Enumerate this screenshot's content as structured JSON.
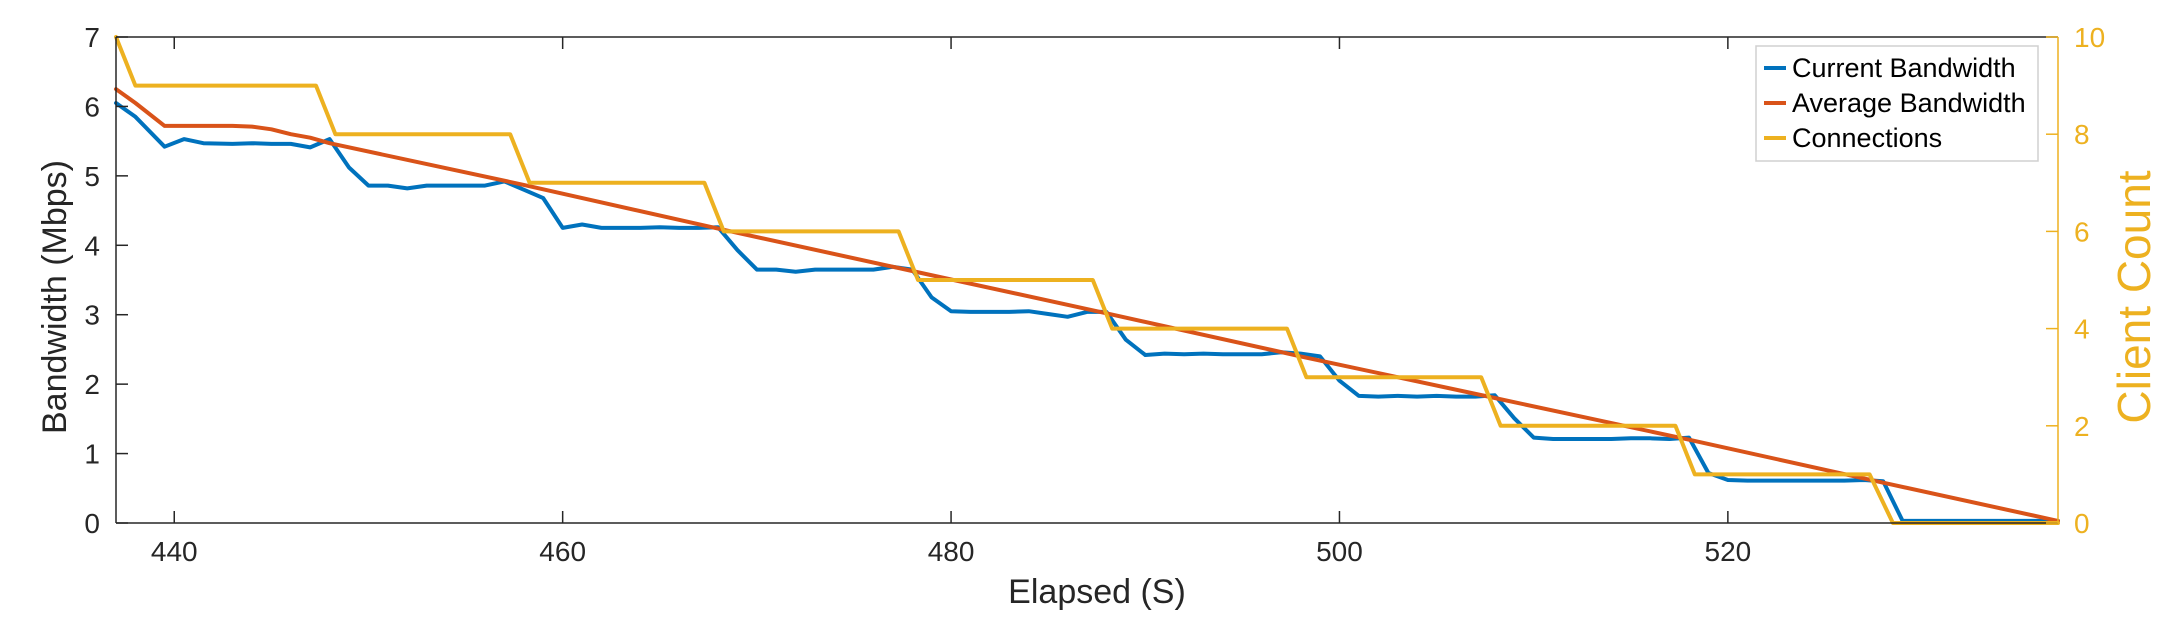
{
  "chart_data": {
    "type": "line",
    "title": "",
    "xlabel": "Elapsed (S)",
    "ylabel_left": "Bandwidth (Mbps)",
    "ylabel_right": "Client Count",
    "xlim": [
      437,
      537
    ],
    "ylim_left": [
      0,
      7
    ],
    "ylim_right": [
      0,
      10
    ],
    "x_ticks": [
      440,
      460,
      480,
      500,
      520
    ],
    "y_ticks_left": [
      0,
      1,
      2,
      3,
      4,
      5,
      6,
      7
    ],
    "y_ticks_right": [
      0,
      2,
      4,
      6,
      8,
      10
    ],
    "grid": false,
    "legend_position": "top-right",
    "right_axis_color": "#EDB120",
    "series": [
      {
        "name": "Current Bandwidth",
        "axis": "left",
        "color": "#0072BD",
        "x": [
          437,
          438,
          439.5,
          440.5,
          441.5,
          443,
          444,
          445,
          446,
          447,
          448,
          449,
          450,
          451,
          452,
          453,
          454,
          455,
          456,
          457,
          458,
          459,
          460,
          461,
          462,
          463,
          464,
          465,
          466,
          467,
          468,
          469,
          470,
          471,
          472,
          473,
          474,
          475,
          476,
          477,
          478,
          479,
          480,
          481,
          482,
          483,
          484,
          485,
          486,
          487,
          488,
          489,
          490,
          491,
          492,
          493,
          494,
          495,
          496,
          497,
          498,
          499,
          500,
          501,
          502,
          503,
          504,
          505,
          506,
          507,
          508,
          509,
          510,
          511,
          512,
          513,
          514,
          515,
          516,
          517,
          518,
          519,
          520,
          521,
          522,
          523,
          524,
          525,
          526,
          527,
          528,
          529,
          537
        ],
        "values": [
          6.05,
          5.85,
          5.42,
          5.53,
          5.47,
          5.46,
          5.47,
          5.46,
          5.46,
          5.41,
          5.53,
          5.12,
          4.86,
          4.86,
          4.82,
          4.86,
          4.86,
          4.86,
          4.86,
          4.92,
          4.8,
          4.68,
          4.25,
          4.3,
          4.25,
          4.25,
          4.25,
          4.26,
          4.25,
          4.25,
          4.26,
          3.93,
          3.65,
          3.65,
          3.62,
          3.65,
          3.65,
          3.65,
          3.65,
          3.69,
          3.65,
          3.25,
          3.05,
          3.04,
          3.04,
          3.04,
          3.05,
          3.01,
          2.97,
          3.04,
          3.04,
          2.64,
          2.42,
          2.44,
          2.43,
          2.44,
          2.43,
          2.43,
          2.43,
          2.46,
          2.44,
          2.4,
          2.05,
          1.83,
          1.82,
          1.83,
          1.82,
          1.83,
          1.82,
          1.82,
          1.84,
          1.51,
          1.23,
          1.21,
          1.21,
          1.21,
          1.21,
          1.22,
          1.22,
          1.21,
          1.23,
          0.72,
          0.62,
          0.61,
          0.61,
          0.61,
          0.61,
          0.61,
          0.61,
          0.62,
          0.6,
          0.03,
          0.03
        ]
      },
      {
        "name": "Average Bandwidth",
        "axis": "left",
        "color": "#D95319",
        "x": [
          437,
          438,
          439.5,
          440,
          442,
          443,
          444,
          445,
          446,
          447,
          448,
          458,
          468,
          478,
          488,
          498,
          508,
          518,
          528,
          537
        ],
        "values": [
          6.25,
          6.05,
          5.72,
          5.72,
          5.72,
          5.72,
          5.71,
          5.67,
          5.6,
          5.55,
          5.47,
          4.87,
          4.24,
          3.63,
          3.02,
          2.4,
          1.8,
          1.2,
          0.58,
          0.03
        ]
      },
      {
        "name": "Connections",
        "axis": "right",
        "color": "#EDB120",
        "x": [
          437,
          438,
          447.3,
          448.3,
          457.3,
          458.3,
          467.3,
          468.3,
          477.3,
          478.3,
          487.3,
          488.3,
          497.3,
          498.3,
          507.3,
          508.3,
          517.3,
          518.3,
          527.3,
          528.5,
          537
        ],
        "values": [
          10,
          9,
          9,
          8,
          8,
          7,
          7,
          6,
          6,
          5,
          5,
          4,
          4,
          3,
          3,
          2,
          2,
          1,
          1,
          0,
          0
        ]
      }
    ]
  }
}
